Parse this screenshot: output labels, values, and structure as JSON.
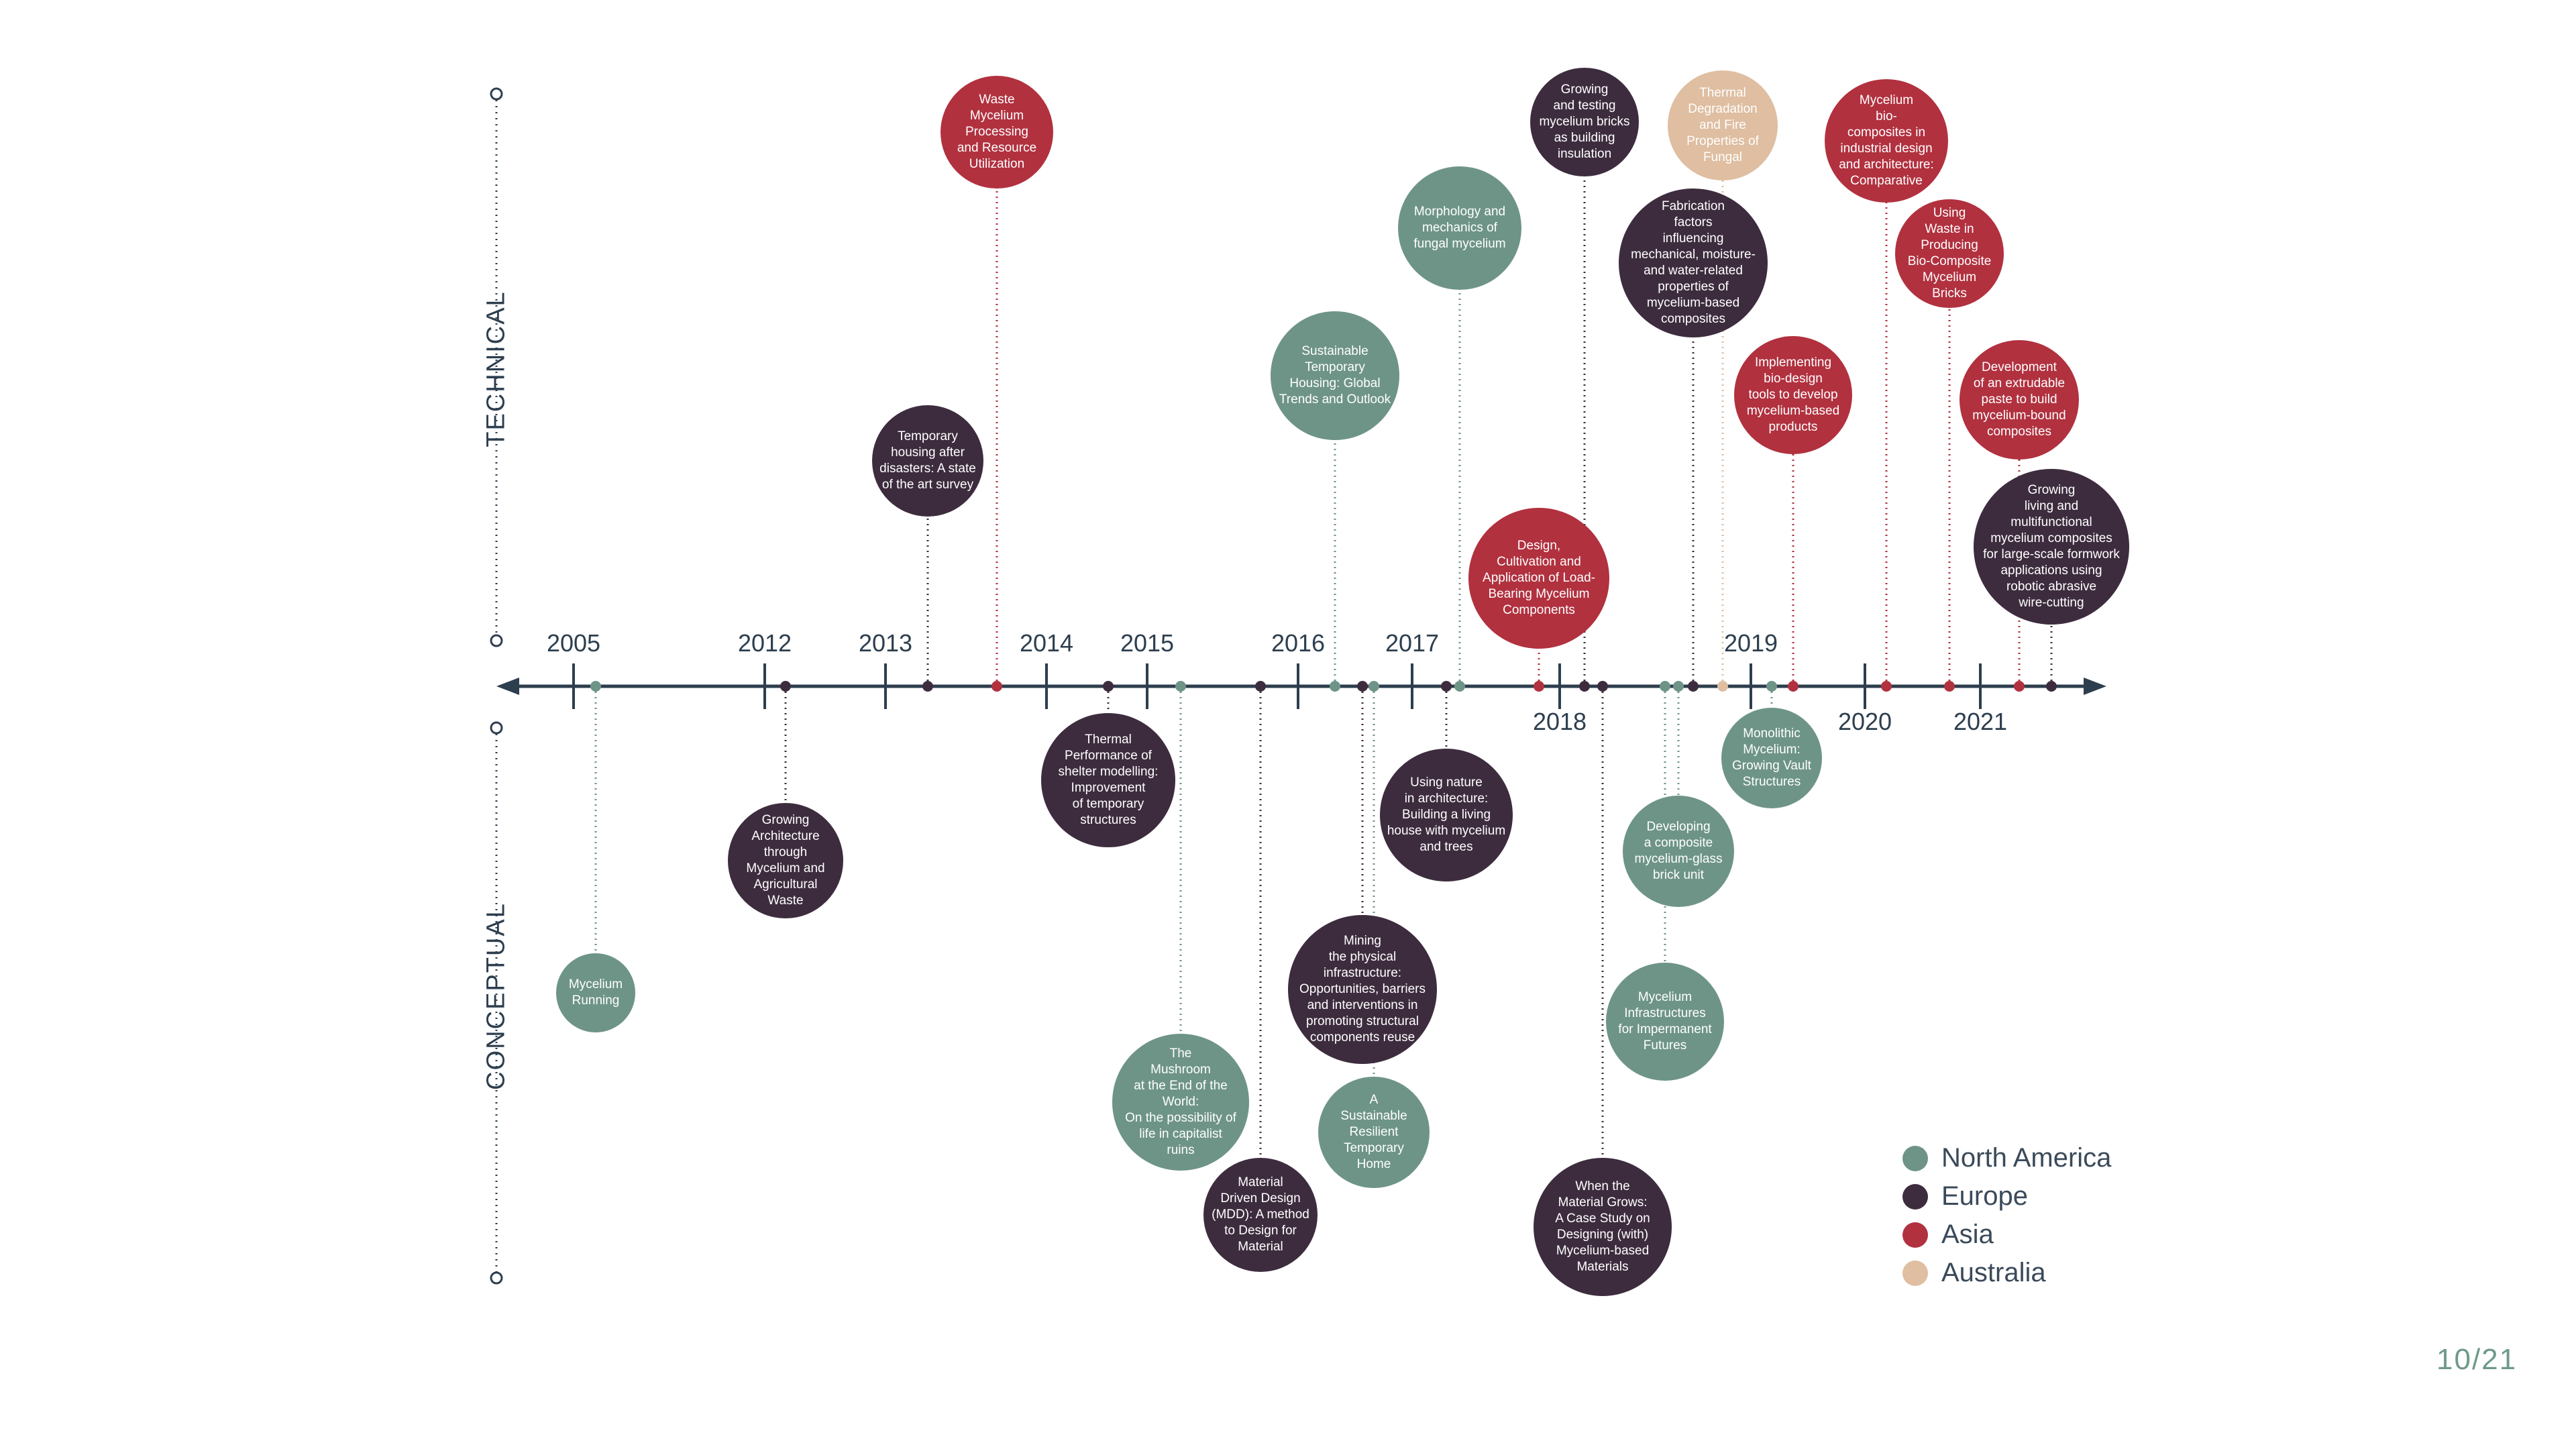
{
  "colors": {
    "north_america": "#6e9488",
    "europe": "#3d2c3e",
    "asia": "#b1313f",
    "australia": "#dfbea1",
    "axis": "#2d3e4e"
  },
  "axis_labels": {
    "top": "TECHNICAL",
    "bottom": "CONCEPTUAL"
  },
  "years": [
    {
      "label": "2005",
      "pos": "above"
    },
    {
      "label": "2012",
      "pos": "above"
    },
    {
      "label": "2013",
      "pos": "above"
    },
    {
      "label": "2014",
      "pos": "above"
    },
    {
      "label": "2015",
      "pos": "above"
    },
    {
      "label": "2016",
      "pos": "above"
    },
    {
      "label": "2017",
      "pos": "above"
    },
    {
      "label": "2018",
      "pos": "below"
    },
    {
      "label": "2019",
      "pos": "above"
    },
    {
      "label": "2020",
      "pos": "below"
    },
    {
      "label": "2021",
      "pos": "below"
    }
  ],
  "entries": [
    {
      "title": "Mycelium\nRunning",
      "region": "north_america",
      "side": "conceptual"
    },
    {
      "title": "Growing\nArchitecture\nthrough\nMycelium and\nAgricultural\nWaste",
      "region": "europe",
      "side": "conceptual"
    },
    {
      "title": "Temporary\nhousing after\ndisasters: A state\nof the art survey",
      "region": "europe",
      "side": "technical"
    },
    {
      "title": "Waste\nMycelium\nProcessing\nand Resource\nUtilization",
      "region": "asia",
      "side": "technical"
    },
    {
      "title": "Thermal\nPerformance of\nshelter modelling:\nImprovement\nof temporary\nstructures",
      "region": "europe",
      "side": "conceptual"
    },
    {
      "title": "The\nMushroom\nat the End of the\nWorld:\nOn the possibility of\nlife in capitalist\nruins",
      "region": "north_america",
      "side": "conceptual"
    },
    {
      "title": "Material\nDriven Design\n(MDD): A method\nto Design for\nMaterial",
      "region": "europe",
      "side": "conceptual"
    },
    {
      "title": "Sustainable\nTemporary\nHousing: Global\nTrends and Outlook",
      "region": "north_america",
      "side": "technical"
    },
    {
      "title": "Mining\nthe physical\ninfrastructure:\nOpportunities, barriers\nand interventions in\npromoting structural\ncomponents reuse",
      "region": "europe",
      "side": "conceptual"
    },
    {
      "title": "A\nSustainable\nResilient\nTemporary\nHome",
      "region": "north_america",
      "side": "conceptual"
    },
    {
      "title": "Using nature\nin architecture:\nBuilding a living\nhouse with mycelium\nand trees",
      "region": "europe",
      "side": "conceptual"
    },
    {
      "title": "Morphology and\nmechanics of\nfungal mycelium",
      "region": "north_america",
      "side": "technical"
    },
    {
      "title": "Design,\nCultivation and\nApplication of Load-\nBearing Mycelium\nComponents",
      "region": "asia",
      "side": "technical"
    },
    {
      "title": "Growing\nand testing\nmycelium bricks\nas building\ninsulation",
      "region": "europe",
      "side": "technical"
    },
    {
      "title": "When the\nMaterial Grows:\nA Case Study on\nDesigning (with)\nMycelium-based\nMaterials",
      "region": "europe",
      "side": "conceptual"
    },
    {
      "title": "Mycelium\nInfrastructures\nfor Impermanent\nFutures",
      "region": "north_america",
      "side": "conceptual"
    },
    {
      "title": "Developing\na composite\nmycelium-glass\nbrick unit",
      "region": "north_america",
      "side": "conceptual"
    },
    {
      "title": "Fabrication\nfactors\ninfluencing\nmechanical, moisture-\nand water-related\nproperties of\nmycelium-based\ncomposites",
      "region": "europe",
      "side": "technical"
    },
    {
      "title": "Thermal\nDegradation\nand Fire\nProperties of\nFungal",
      "region": "australia",
      "side": "technical"
    },
    {
      "title": "Monolithic\nMycelium:\nGrowing Vault\nStructures",
      "region": "north_america",
      "side": "conceptual"
    },
    {
      "title": "Implementing\nbio-design\ntools to develop\nmycelium-based\nproducts",
      "region": "asia",
      "side": "technical"
    },
    {
      "title": "Mycelium\nbio-\ncomposites in\nindustrial design\nand architecture:\nComparative",
      "region": "asia",
      "side": "technical"
    },
    {
      "title": "Using\nWaste in\nProducing\nBio-Composite\nMycelium\nBricks",
      "region": "asia",
      "side": "technical"
    },
    {
      "title": "Development\nof an extrudable\npaste to build\nmycelium-bound\ncomposites",
      "region": "asia",
      "side": "technical"
    },
    {
      "title": "Growing\nliving and\nmultifunctional\nmycelium composites\nfor large-scale formwork\napplications using\nrobotic abrasive\nwire-cutting",
      "region": "europe",
      "side": "technical"
    }
  ],
  "legend": [
    {
      "label": "North America",
      "region": "north_america"
    },
    {
      "label": "Europe",
      "region": "europe"
    },
    {
      "label": "Asia",
      "region": "asia"
    },
    {
      "label": "Australia",
      "region": "australia"
    }
  ],
  "page_number": "10/21"
}
